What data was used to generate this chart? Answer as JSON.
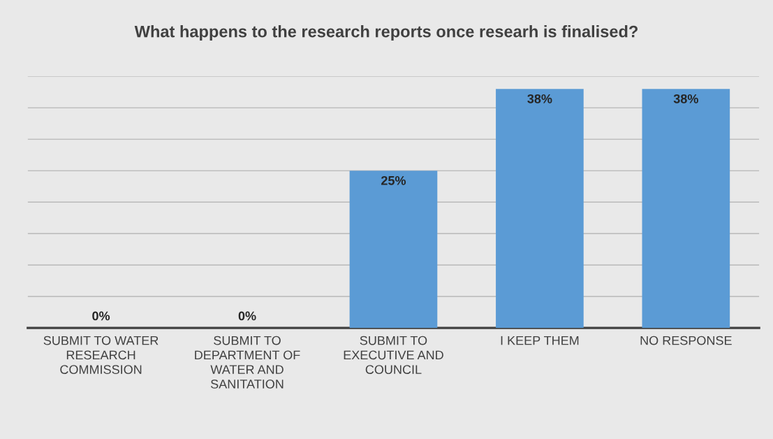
{
  "chart_data": {
    "type": "bar",
    "title": "What happens to the research reports once researh is finalised?",
    "categories": [
      "SUBMIT TO WATER RESEARCH COMMISSION",
      "SUBMIT TO DEPARTMENT OF WATER AND SANITATION",
      "SUBMIT TO EXECUTIVE AND COUNCIL",
      "I KEEP THEM",
      "NO RESPONSE"
    ],
    "values": [
      0,
      0,
      25,
      38,
      38
    ],
    "value_labels": [
      "0%",
      "0%",
      "25%",
      "38%",
      "38%"
    ],
    "color": "#5b9bd5",
    "ylim": [
      0,
      40
    ],
    "yticks": [
      {
        "value": 5,
        "label": null
      },
      {
        "value": 10,
        "label": null
      },
      {
        "value": 15,
        "label": null
      },
      {
        "value": 20,
        "label": null
      },
      {
        "value": 25,
        "label": null
      },
      {
        "value": 30,
        "label": null
      },
      {
        "value": 35,
        "label": null
      },
      {
        "value": 40,
        "label": null
      }
    ],
    "tick_labels": "x",
    "grid": "y"
  }
}
